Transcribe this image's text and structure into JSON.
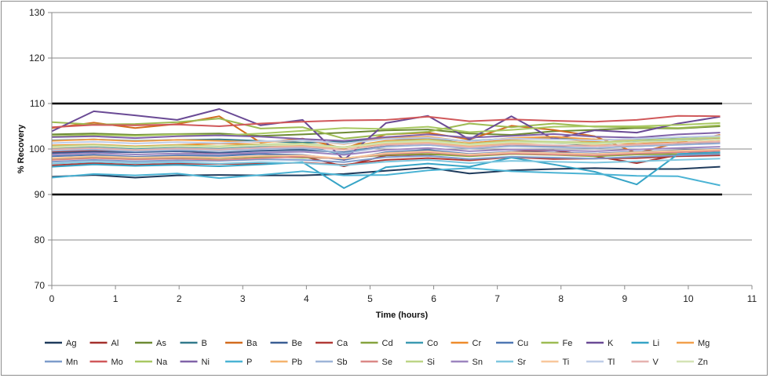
{
  "chart_data": {
    "type": "line",
    "xlabel": "Time (hours)",
    "ylabel": "% Recovery",
    "xlim": [
      0,
      11
    ],
    "ylim": [
      70,
      130
    ],
    "xticks": [
      "0",
      "1",
      "2",
      "3",
      "4",
      "5",
      "6",
      "7",
      "8",
      "9",
      "10",
      "11"
    ],
    "yticks": [
      "70",
      "80",
      "90",
      "100",
      "110",
      "120",
      "130"
    ],
    "grid": "horizontal",
    "control_limits": [
      90,
      110
    ],
    "legend_position": "bottom",
    "x": [
      0,
      0.66,
      1.31,
      1.97,
      2.63,
      3.28,
      3.94,
      4.59,
      5.25,
      5.91,
      6.56,
      7.22,
      7.88,
      8.53,
      9.19,
      9.84,
      10.5
    ],
    "series": [
      {
        "name": "Ag",
        "color": "#1f3b5c",
        "values": [
          93.9,
          94.3,
          93.7,
          94.2,
          94.3,
          94.2,
          94.2,
          94.5,
          95.2,
          95.9,
          94.6,
          95.3,
          95.6,
          95.8,
          95.6,
          95.6,
          96.1
        ]
      },
      {
        "name": "Al",
        "color": "#a4302d",
        "values": [
          99.3,
          99.7,
          99.4,
          99.5,
          99.1,
          98.9,
          98.4,
          96.2,
          98.6,
          98.8,
          98.7,
          99.4,
          99.7,
          98.4,
          96.9,
          98.7,
          99.9
        ]
      },
      {
        "name": "As",
        "color": "#6d8a33",
        "values": [
          103.2,
          103.4,
          103.1,
          103.3,
          103.4,
          102.9,
          103.2,
          103.6,
          104.1,
          104.3,
          103.4,
          103.1,
          103.9,
          104.2,
          104.6,
          104.5,
          105.0
        ]
      },
      {
        "name": "B",
        "color": "#327a8c",
        "values": [
          101.9,
          102.1,
          101.8,
          102.0,
          102.1,
          101.8,
          101.4,
          101.6,
          102.3,
          102.2,
          101.8,
          102.3,
          102.5,
          102.1,
          102.0,
          102.3,
          102.6
        ]
      },
      {
        "name": "Ba",
        "color": "#d26c1f",
        "values": [
          104.6,
          105.8,
          104.6,
          105.5,
          107.2,
          101.4,
          102.3,
          100.1,
          103.2,
          103.6,
          102.1,
          105.1,
          104.2,
          102.8,
          99.1,
          101.4,
          103.1
        ]
      },
      {
        "name": "Be",
        "color": "#3a5e93",
        "values": [
          99.1,
          99.4,
          99.3,
          99.5,
          99.2,
          99.6,
          99.8,
          99.3,
          100.6,
          100.9,
          100.3,
          100.9,
          100.6,
          100.9,
          100.6,
          101.0,
          101.3
        ]
      },
      {
        "name": "Ca",
        "color": "#b13a36",
        "values": [
          96.4,
          96.9,
          96.5,
          96.8,
          96.7,
          96.8,
          97.0,
          96.5,
          97.6,
          98.0,
          97.5,
          98.2,
          97.8,
          97.9,
          98.0,
          98.4,
          98.6
        ]
      },
      {
        "name": "Cd",
        "color": "#86a33e",
        "values": [
          97.8,
          98.2,
          97.9,
          98.1,
          98.0,
          98.3,
          98.1,
          98.0,
          98.7,
          98.9,
          98.4,
          98.9,
          98.7,
          98.4,
          98.8,
          98.9,
          99.1
        ]
      },
      {
        "name": "Co",
        "color": "#3c9ab2",
        "values": [
          100.1,
          100.4,
          100.0,
          100.3,
          100.1,
          100.5,
          100.6,
          98.8,
          101.7,
          102.2,
          101.1,
          101.6,
          101.3,
          101.0,
          101.6,
          101.9,
          102.2
        ]
      },
      {
        "name": "Cr",
        "color": "#ee8c2c",
        "values": [
          100.8,
          101.0,
          100.6,
          100.9,
          101.2,
          101.0,
          100.8,
          100.4,
          101.8,
          102.1,
          101.2,
          102.1,
          102.3,
          101.6,
          101.1,
          101.7,
          102.1
        ]
      },
      {
        "name": "Cu",
        "color": "#4f77b3",
        "values": [
          98.4,
          98.7,
          98.3,
          98.6,
          98.5,
          98.9,
          98.7,
          97.6,
          99.3,
          99.8,
          98.9,
          99.4,
          99.2,
          99.0,
          99.4,
          99.7,
          100.0
        ]
      },
      {
        "name": "Fe",
        "color": "#9dbb52",
        "values": [
          105.9,
          105.4,
          105.5,
          105.9,
          106.7,
          104.5,
          104.8,
          102.3,
          103.2,
          103.8,
          105.6,
          104.8,
          105.6,
          104.9,
          104.8,
          104.6,
          105.2
        ]
      },
      {
        "name": "K",
        "color": "#6a4a95",
        "values": [
          103.9,
          108.3,
          107.4,
          106.4,
          108.8,
          105.2,
          106.4,
          97.6,
          105.7,
          107.3,
          102.1,
          107.2,
          102.2,
          104.1,
          103.6,
          105.6,
          107.1
        ]
      },
      {
        "name": "Li",
        "color": "#36a4c6",
        "values": [
          96.1,
          96.6,
          96.3,
          96.5,
          96.2,
          96.6,
          97.1,
          91.4,
          96.0,
          96.8,
          96.1,
          98.1,
          96.6,
          95.0,
          92.2,
          98.9,
          99.3
        ]
      },
      {
        "name": "Mg",
        "color": "#f2a04d",
        "values": [
          101.8,
          102.1,
          101.7,
          102.0,
          101.8,
          101.5,
          101.9,
          101.1,
          102.4,
          102.7,
          101.6,
          102.4,
          102.7,
          102.1,
          101.9,
          102.2,
          102.5
        ]
      },
      {
        "name": "Mn",
        "color": "#7d9ccb",
        "values": [
          97.2,
          97.6,
          97.3,
          97.5,
          97.4,
          97.7,
          97.6,
          97.1,
          98.2,
          98.5,
          97.8,
          98.3,
          98.1,
          97.9,
          98.3,
          98.6,
          98.9
        ]
      },
      {
        "name": "Mo",
        "color": "#d0585a",
        "values": [
          104.8,
          105.3,
          105.2,
          105.4,
          105.0,
          105.6,
          106.0,
          106.3,
          106.4,
          107.1,
          106.1,
          106.5,
          106.2,
          106.0,
          106.4,
          107.3,
          107.2
        ]
      },
      {
        "name": "Na",
        "color": "#a8c862",
        "values": [
          102.8,
          103.1,
          102.9,
          103.2,
          103.0,
          103.4,
          104.0,
          104.6,
          104.4,
          104.9,
          103.7,
          104.2,
          104.9,
          105.0,
          105.0,
          105.3,
          105.7
        ]
      },
      {
        "name": "Ni",
        "color": "#8062a8",
        "values": [
          102.6,
          102.8,
          102.4,
          102.8,
          103.0,
          102.7,
          102.2,
          101.8,
          102.6,
          103.2,
          102.5,
          102.9,
          103.3,
          102.7,
          102.5,
          103.2,
          103.6
        ]
      },
      {
        "name": "P",
        "color": "#4bb3d4",
        "values": [
          93.7,
          94.5,
          94.2,
          94.6,
          93.6,
          94.3,
          95.1,
          94.2,
          94.3,
          95.3,
          95.8,
          95.1,
          94.8,
          94.5,
          94.1,
          94.0,
          92.0
        ]
      },
      {
        "name": "Pb",
        "color": "#f5b36e",
        "values": [
          100.3,
          100.7,
          100.3,
          100.6,
          100.4,
          100.8,
          100.6,
          100.2,
          101.2,
          101.5,
          100.6,
          101.2,
          101.4,
          100.9,
          100.7,
          101.3,
          101.7
        ]
      },
      {
        "name": "Sb",
        "color": "#9db4d8",
        "values": [
          99.6,
          99.9,
          99.5,
          99.8,
          99.7,
          100.0,
          100.2,
          99.1,
          100.5,
          100.9,
          100.1,
          100.6,
          100.4,
          100.2,
          100.6,
          100.9,
          101.2
        ]
      },
      {
        "name": "Se",
        "color": "#db8886",
        "values": [
          97.6,
          98.0,
          97.7,
          97.9,
          97.6,
          98.0,
          98.3,
          97.9,
          98.9,
          99.3,
          98.6,
          99.0,
          98.8,
          98.6,
          99.0,
          99.3,
          99.6
        ]
      },
      {
        "name": "Si",
        "color": "#bdd586",
        "values": [
          100.6,
          100.9,
          100.5,
          100.8,
          100.6,
          101.0,
          101.2,
          100.4,
          101.6,
          102.0,
          101.1,
          101.8,
          101.6,
          101.4,
          101.9,
          102.2,
          102.6
        ]
      },
      {
        "name": "Sn",
        "color": "#9c85bf",
        "values": [
          98.8,
          99.1,
          98.8,
          99.0,
          98.9,
          99.2,
          99.4,
          98.7,
          99.8,
          100.2,
          99.5,
          99.9,
          99.7,
          99.5,
          99.9,
          100.2,
          100.5
        ]
      },
      {
        "name": "Sr",
        "color": "#7fc7df",
        "values": [
          96.8,
          97.2,
          96.9,
          97.1,
          96.8,
          97.1,
          96.9,
          96.4,
          97.2,
          97.6,
          96.9,
          97.4,
          97.2,
          97.0,
          97.3,
          97.6,
          97.9
        ]
      },
      {
        "name": "Ti",
        "color": "#f8c79b",
        "values": [
          98.0,
          98.4,
          98.1,
          98.3,
          98.1,
          98.5,
          98.6,
          97.9,
          99.1,
          99.5,
          98.8,
          99.3,
          99.1,
          98.9,
          99.3,
          99.6,
          99.9
        ]
      },
      {
        "name": "Tl",
        "color": "#bfcde8",
        "values": [
          101.3,
          101.6,
          101.2,
          101.5,
          101.3,
          101.7,
          101.9,
          101.2,
          102.2,
          102.5,
          101.7,
          102.3,
          102.1,
          101.9,
          102.3,
          102.6,
          102.9
        ]
      },
      {
        "name": "V",
        "color": "#e6b2b0",
        "values": [
          99.9,
          100.2,
          99.8,
          100.1,
          99.9,
          100.3,
          100.5,
          99.8,
          100.9,
          101.2,
          100.4,
          101.0,
          100.8,
          100.6,
          101.0,
          101.3,
          101.6
        ]
      },
      {
        "name": "Zn",
        "color": "#d4e3b5",
        "values": [
          100.4,
          100.7,
          100.3,
          100.6,
          100.4,
          100.8,
          101.0,
          100.3,
          101.4,
          101.7,
          100.9,
          101.5,
          101.3,
          101.1,
          101.5,
          101.8,
          102.1
        ]
      }
    ]
  }
}
